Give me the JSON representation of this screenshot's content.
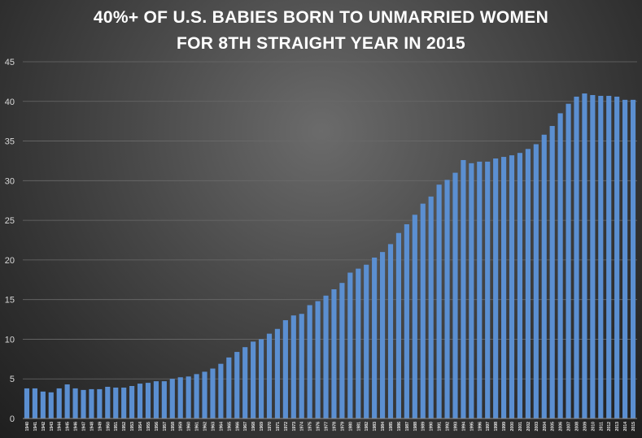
{
  "chart_data": {
    "type": "bar",
    "title_lines": [
      "40%+ OF U.S. BABIES BORN TO UNMARRIED WOMEN",
      "FOR 8TH STRAIGHT YEAR IN 2015"
    ],
    "xlabel": "",
    "ylabel": "",
    "ylim": [
      0,
      45
    ],
    "yticks": [
      0,
      5,
      10,
      15,
      20,
      25,
      30,
      35,
      40,
      45
    ],
    "grid": true,
    "legend": "none",
    "bar_color": "#5b8fd1",
    "categories": [
      "1940",
      "1941",
      "1942",
      "1943",
      "1944",
      "1945",
      "1946",
      "1947",
      "1948",
      "1949",
      "1950",
      "1951",
      "1952",
      "1953",
      "1954",
      "1955",
      "1956",
      "1957",
      "1958",
      "1959",
      "1960",
      "1961",
      "1962",
      "1963",
      "1964",
      "1965",
      "1966",
      "1967",
      "1968",
      "1969",
      "1970",
      "1971",
      "1972",
      "1973",
      "1974",
      "1975",
      "1976",
      "1977",
      "1978",
      "1979",
      "1980",
      "1981",
      "1982",
      "1983",
      "1984",
      "1985",
      "1986",
      "1987",
      "1988",
      "1989",
      "1990",
      "1991",
      "1992",
      "1993",
      "1994",
      "1995",
      "1996",
      "1997",
      "1998",
      "1999",
      "2000",
      "2001",
      "2002",
      "2003",
      "2004",
      "2005",
      "2006",
      "2007",
      "2008",
      "2009",
      "2010",
      "2011",
      "2012",
      "2013",
      "2014",
      "2015"
    ],
    "values": [
      3.8,
      3.8,
      3.4,
      3.3,
      3.8,
      4.3,
      3.8,
      3.6,
      3.7,
      3.7,
      4.0,
      3.9,
      3.9,
      4.1,
      4.4,
      4.5,
      4.7,
      4.7,
      5.0,
      5.2,
      5.3,
      5.6,
      5.9,
      6.3,
      6.9,
      7.7,
      8.4,
      9.0,
      9.7,
      10.0,
      10.7,
      11.3,
      12.4,
      13.0,
      13.2,
      14.3,
      14.8,
      15.5,
      16.3,
      17.1,
      18.4,
      18.9,
      19.4,
      20.3,
      21.0,
      22.0,
      23.4,
      24.5,
      25.7,
      27.1,
      28.0,
      29.5,
      30.1,
      31.0,
      32.6,
      32.2,
      32.4,
      32.4,
      32.8,
      33.0,
      33.2,
      33.5,
      34.0,
      34.6,
      35.8,
      36.9,
      38.5,
      39.7,
      40.6,
      41.0,
      40.8,
      40.7,
      40.7,
      40.6,
      40.2,
      40.2
    ]
  }
}
